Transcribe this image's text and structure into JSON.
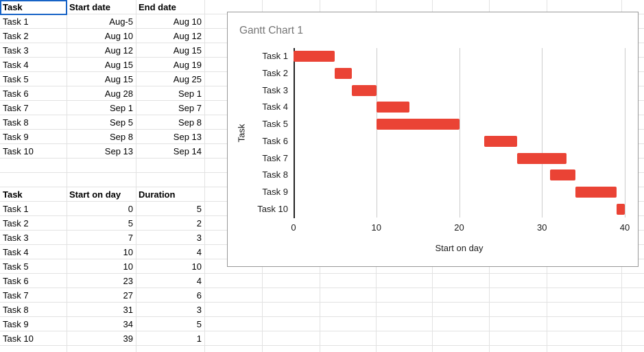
{
  "sheet": {
    "active_cell": "A1",
    "tables": {
      "dates": {
        "headers": [
          "Task",
          "Start date",
          "End date"
        ],
        "rows": [
          [
            "Task 1",
            "Aug-5",
            "Aug 10"
          ],
          [
            "Task 2",
            "Aug 10",
            "Aug 12"
          ],
          [
            "Task 3",
            "Aug 12",
            "Aug 15"
          ],
          [
            "Task 4",
            "Aug 15",
            "Aug 19"
          ],
          [
            "Task 5",
            "Aug 15",
            "Aug 25"
          ],
          [
            "Task 6",
            "Aug 28",
            "Sep 1"
          ],
          [
            "Task 7",
            "Sep 1",
            "Sep 7"
          ],
          [
            "Task 8",
            "Sep 5",
            "Sep 8"
          ],
          [
            "Task 9",
            "Sep 8",
            "Sep 13"
          ],
          [
            "Task 10",
            "Sep 13",
            "Sep 14"
          ]
        ]
      },
      "schedule": {
        "headers": [
          "Task",
          "Start on day",
          "Duration"
        ],
        "rows": [
          [
            "Task 1",
            0,
            5
          ],
          [
            "Task 2",
            5,
            2
          ],
          [
            "Task 3",
            7,
            3
          ],
          [
            "Task 4",
            10,
            4
          ],
          [
            "Task 5",
            10,
            10
          ],
          [
            "Task 6",
            23,
            4
          ],
          [
            "Task 7",
            27,
            6
          ],
          [
            "Task 8",
            31,
            3
          ],
          [
            "Task 9",
            34,
            5
          ],
          [
            "Task 10",
            39,
            1
          ]
        ]
      }
    }
  },
  "chart_data": {
    "type": "bar",
    "orientation": "horizontal",
    "title": "Gantt Chart 1",
    "xlabel": "Start on day",
    "ylabel": "Task",
    "categories": [
      "Task 1",
      "Task 2",
      "Task 3",
      "Task 4",
      "Task 5",
      "Task 6",
      "Task 7",
      "Task 8",
      "Task 9",
      "Task 10"
    ],
    "series": [
      {
        "name": "Start on day",
        "values": [
          0,
          5,
          7,
          10,
          10,
          23,
          27,
          31,
          34,
          39
        ]
      },
      {
        "name": "Duration",
        "values": [
          5,
          2,
          3,
          4,
          10,
          4,
          6,
          3,
          5,
          1
        ]
      }
    ],
    "xlim": [
      0,
      40
    ],
    "xticks": [
      0,
      10,
      20,
      30,
      40
    ],
    "bar_color": "#ea4335",
    "grid": "vertical",
    "legend": "none"
  },
  "colors": {
    "bar_red": "#ea4335",
    "selection_blue": "#1763c6",
    "sheet_gridline": "#e2e2e2",
    "chart_gridline": "#cccccc",
    "chart_title_gray": "#757575"
  }
}
